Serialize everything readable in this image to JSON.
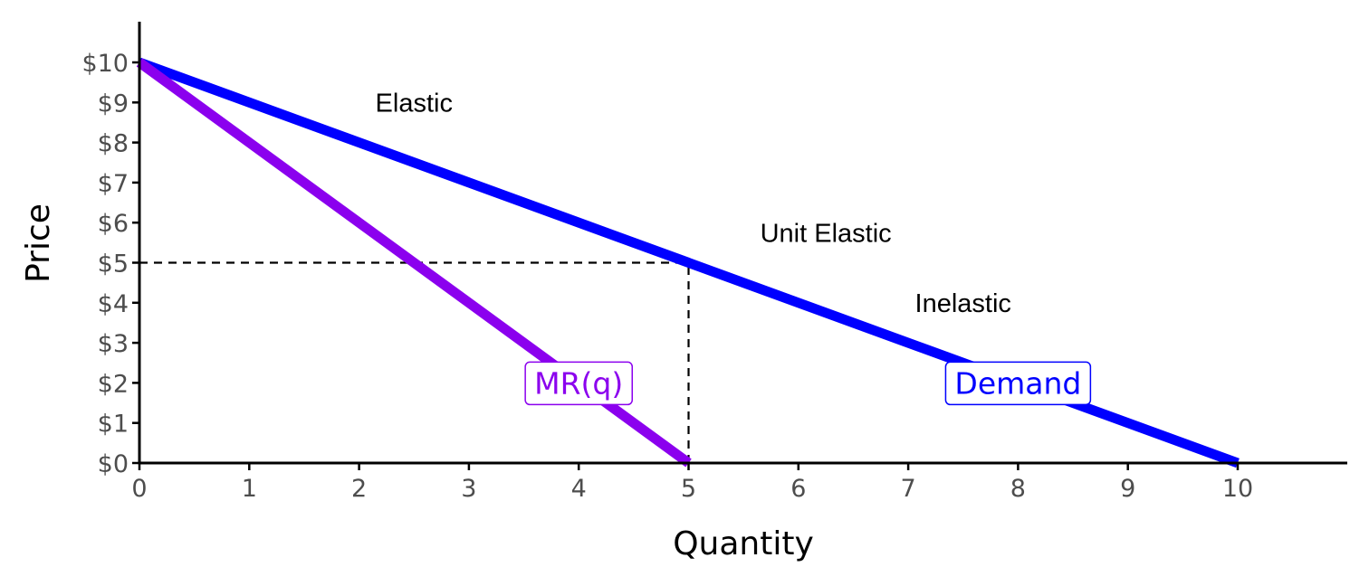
{
  "chart_data": {
    "type": "line",
    "xlabel": "Quantity",
    "ylabel": "Price",
    "xlim": [
      0,
      11
    ],
    "ylim": [
      0,
      10.5
    ],
    "x_ticks": [
      0,
      1,
      2,
      3,
      4,
      5,
      6,
      7,
      8,
      9,
      10
    ],
    "x_tick_labels": [
      "0",
      "1",
      "2",
      "3",
      "4",
      "5",
      "6",
      "7",
      "8",
      "9",
      "10"
    ],
    "y_ticks": [
      0,
      1,
      2,
      3,
      4,
      5,
      6,
      7,
      8,
      9,
      10
    ],
    "y_tick_labels": [
      "$0",
      "$1",
      "$2",
      "$3",
      "$4",
      "$5",
      "$6",
      "$7",
      "$8",
      "$9",
      "$10"
    ],
    "grid": false,
    "legend": "none",
    "series": [
      {
        "name": "Demand",
        "color": "#0000ff",
        "x": [
          0,
          10
        ],
        "y": [
          10,
          0
        ],
        "label_at": [
          8,
          2
        ]
      },
      {
        "name": "MR(q)",
        "color": "#8b00ee",
        "x": [
          0,
          5
        ],
        "y": [
          10,
          0
        ],
        "label_at": [
          4,
          2
        ]
      }
    ],
    "reference_lines": {
      "style": "dashed",
      "color": "#000000",
      "horizontal": {
        "y": 5,
        "x_from": 0,
        "x_to": 5
      },
      "vertical": {
        "x": 5,
        "y_from": 0,
        "y_to": 5
      }
    },
    "annotations": [
      {
        "text": "Elastic",
        "x": 2.5,
        "y": 9
      },
      {
        "text": "Unit Elastic",
        "x": 6.25,
        "y": 5.75
      },
      {
        "text": "Inelastic",
        "x": 7.5,
        "y": 4
      }
    ]
  }
}
